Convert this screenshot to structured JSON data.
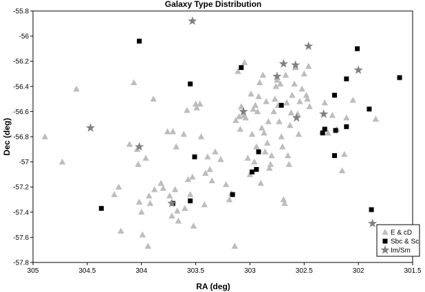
{
  "chart_data": {
    "type": "scatter",
    "title": "Galaxy Type Distribution",
    "xlabel": "RA (deg)",
    "ylabel": "Dec (deg)",
    "xlim": [
      305,
      301.5
    ],
    "ylim": [
      -57.8,
      -55.8
    ],
    "x_reversed": true,
    "x_ticks": [
      305,
      304.5,
      304,
      303.5,
      303,
      302.5,
      302,
      301.5
    ],
    "x_tick_labels": [
      "305",
      "304.5",
      "304",
      "303.5",
      "303",
      "302.5",
      "302",
      "301.5"
    ],
    "y_ticks": [
      -55.8,
      -56,
      -56.2,
      -56.4,
      -56.6,
      -56.8,
      -57,
      -57.2,
      -57.4,
      -57.6,
      -57.8
    ],
    "y_tick_labels": [
      "-55.8",
      "-56",
      "-56.2",
      "-56.4",
      "-56.6",
      "-56.8",
      "-57",
      "-57.2",
      "-57.4",
      "-57.6",
      "-57.8"
    ],
    "grid": false,
    "legend_position": "bottom-right",
    "series": [
      {
        "name": "E & cD",
        "marker": "triangle",
        "color": "#bdbdbd",
        "points": [
          [
            304.89,
            -56.8
          ],
          [
            304.73,
            -57.0
          ],
          [
            304.6,
            -56.42
          ],
          [
            304.25,
            -57.26
          ],
          [
            304.21,
            -57.2
          ],
          [
            304.19,
            -57.55
          ],
          [
            304.11,
            -56.86
          ],
          [
            304.07,
            -56.37
          ],
          [
            304.04,
            -56.9
          ],
          [
            304.03,
            -57.02
          ],
          [
            304.02,
            -57.32
          ],
          [
            304.0,
            -57.4
          ],
          [
            303.99,
            -57.58
          ],
          [
            303.96,
            -56.97
          ],
          [
            303.94,
            -57.67
          ],
          [
            303.93,
            -57.27
          ],
          [
            303.92,
            -57.33
          ],
          [
            303.89,
            -56.5
          ],
          [
            303.88,
            -57.22
          ],
          [
            303.82,
            -57.17
          ],
          [
            303.8,
            -57.21
          ],
          [
            303.76,
            -56.76
          ],
          [
            303.74,
            -57.27
          ],
          [
            303.72,
            -57.43
          ],
          [
            303.71,
            -56.76
          ],
          [
            303.69,
            -57.22
          ],
          [
            303.68,
            -56.88
          ],
          [
            303.67,
            -57.39
          ],
          [
            303.66,
            -57.47
          ],
          [
            303.61,
            -56.78
          ],
          [
            303.6,
            -57.37
          ],
          [
            303.58,
            -56.59
          ],
          [
            303.57,
            -57.14
          ],
          [
            303.55,
            -57.26
          ],
          [
            303.53,
            -57.12
          ],
          [
            303.52,
            -57.51
          ],
          [
            303.5,
            -56.54
          ],
          [
            303.49,
            -56.57
          ],
          [
            303.46,
            -56.54
          ],
          [
            303.45,
            -56.8
          ],
          [
            303.42,
            -57.34
          ],
          [
            303.41,
            -57.09
          ],
          [
            303.39,
            -56.96
          ],
          [
            303.37,
            -57.06
          ],
          [
            303.35,
            -57.15
          ],
          [
            303.32,
            -56.92
          ],
          [
            303.27,
            -56.98
          ],
          [
            303.22,
            -57.18
          ],
          [
            303.19,
            -57.3
          ],
          [
            303.17,
            -57.25
          ],
          [
            303.14,
            -57.67
          ],
          [
            303.13,
            -56.67
          ],
          [
            303.11,
            -56.28
          ],
          [
            303.1,
            -56.64
          ],
          [
            303.09,
            -56.74
          ],
          [
            303.08,
            -56.56
          ],
          [
            303.06,
            -56.63
          ],
          [
            303.05,
            -56.21
          ],
          [
            303.04,
            -56.65
          ],
          [
            303.02,
            -56.97
          ],
          [
            303.0,
            -57.1
          ],
          [
            302.99,
            -56.46
          ],
          [
            302.98,
            -56.78
          ],
          [
            302.97,
            -56.58
          ],
          [
            302.96,
            -57.0
          ],
          [
            302.95,
            -56.55
          ],
          [
            302.94,
            -56.88
          ],
          [
            302.93,
            -56.6
          ],
          [
            302.92,
            -56.48
          ],
          [
            302.91,
            -56.37
          ],
          [
            302.9,
            -57.17
          ],
          [
            302.89,
            -56.73
          ],
          [
            302.88,
            -56.31
          ],
          [
            302.87,
            -56.77
          ],
          [
            302.86,
            -56.92
          ],
          [
            302.85,
            -56.52
          ],
          [
            302.84,
            -56.85
          ],
          [
            302.83,
            -56.68
          ],
          [
            302.82,
            -57.05
          ],
          [
            302.81,
            -57.02
          ],
          [
            302.8,
            -56.95
          ],
          [
            302.78,
            -56.6
          ],
          [
            302.77,
            -56.5
          ],
          [
            302.76,
            -56.4
          ],
          [
            302.75,
            -56.35
          ],
          [
            302.74,
            -56.55
          ],
          [
            302.73,
            -56.68
          ],
          [
            302.72,
            -56.38
          ],
          [
            302.71,
            -56.8
          ],
          [
            302.7,
            -56.88
          ],
          [
            302.69,
            -57.3
          ],
          [
            302.68,
            -57.33
          ],
          [
            302.67,
            -56.31
          ],
          [
            302.66,
            -56.53
          ],
          [
            302.65,
            -56.95
          ],
          [
            302.64,
            -57.02
          ],
          [
            302.63,
            -56.71
          ],
          [
            302.62,
            -56.61
          ],
          [
            302.61,
            -56.47
          ],
          [
            302.59,
            -56.38
          ],
          [
            302.58,
            -56.25
          ],
          [
            302.56,
            -56.62
          ],
          [
            302.55,
            -56.78
          ],
          [
            302.54,
            -56.52
          ],
          [
            302.52,
            -56.42
          ],
          [
            302.5,
            -56.3
          ],
          [
            302.48,
            -56.47
          ],
          [
            302.47,
            -56.5
          ],
          [
            302.46,
            -56.24
          ],
          [
            302.45,
            -56.56
          ],
          [
            302.33,
            -56.76
          ],
          [
            302.31,
            -56.53
          ],
          [
            302.28,
            -56.77
          ],
          [
            302.24,
            -56.63
          ],
          [
            302.2,
            -56.74
          ],
          [
            302.15,
            -57.07
          ],
          [
            302.13,
            -56.94
          ],
          [
            302.11,
            -56.65
          ],
          [
            302.05,
            -56.51
          ],
          [
            301.84,
            -56.66
          ]
        ]
      },
      {
        "name": "Sbc & Sc",
        "marker": "square",
        "color": "#000000",
        "points": [
          [
            304.37,
            -57.37
          ],
          [
            304.02,
            -56.04
          ],
          [
            303.71,
            -57.33
          ],
          [
            303.55,
            -56.38
          ],
          [
            303.51,
            -56.96
          ],
          [
            303.55,
            -57.31
          ],
          [
            303.16,
            -57.26
          ],
          [
            303.08,
            -56.25
          ],
          [
            302.98,
            -57.08
          ],
          [
            302.94,
            -57.06
          ],
          [
            302.92,
            -56.92
          ],
          [
            302.71,
            -56.55
          ],
          [
            302.33,
            -56.77
          ],
          [
            302.31,
            -56.74
          ],
          [
            302.22,
            -56.47
          ],
          [
            302.21,
            -56.75
          ],
          [
            302.22,
            -56.95
          ],
          [
            302.11,
            -56.34
          ],
          [
            302.11,
            -56.72
          ],
          [
            302.01,
            -56.1
          ],
          [
            301.9,
            -56.58
          ],
          [
            301.88,
            -57.38
          ],
          [
            301.62,
            -56.33
          ]
        ]
      },
      {
        "name": "Im/Sm",
        "marker": "star",
        "color": "#808080",
        "points": [
          [
            304.47,
            -56.73
          ],
          [
            304.02,
            -56.88
          ],
          [
            303.72,
            -57.33
          ],
          [
            303.53,
            -55.88
          ],
          [
            303.06,
            -56.6
          ],
          [
            302.75,
            -56.32
          ],
          [
            302.69,
            -56.22
          ],
          [
            302.58,
            -56.23
          ],
          [
            302.57,
            -56.65
          ],
          [
            302.46,
            -56.08
          ],
          [
            302.32,
            -56.62
          ],
          [
            302.0,
            -56.27
          ],
          [
            301.87,
            -57.49
          ]
        ]
      }
    ]
  }
}
